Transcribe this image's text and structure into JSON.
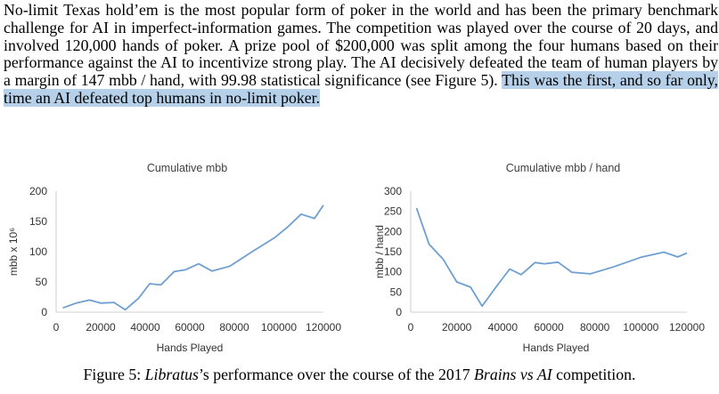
{
  "paragraph": {
    "text_before": "No-limit Texas hold’em is the most popular form of poker in the world and has been the primary benchmark challenge for AI in imperfect-information games. The competition was played over the course of 20 days, and involved 120,000 hands of poker. A prize pool of $200,000 was split among the four humans based on their performance against the AI to incentivize strong play. The AI decisively defeated the team of human players by a margin of 147 mbb / hand, with 99.98 statistical significance (see Figure 5). ",
    "text_highlighted": "This was the first, and so far only, time an AI defeated top humans in no-limit poker."
  },
  "caption": {
    "prefix": "Figure 5: ",
    "name_italic": "Libratus",
    "middle": "’s performance over the course of the 2017 ",
    "event_italic": "Brains vs AI",
    "suffix": " competition."
  },
  "colors": {
    "line": "#6f9fd0",
    "axis": "#d9d9d9",
    "highlight": "#b5d0e8"
  },
  "chart_data": [
    {
      "type": "line",
      "title": "Cumulative mbb",
      "xlabel": "Hands Played",
      "ylabel": "mbb x 10⁶",
      "xlim": [
        0,
        120000
      ],
      "ylim": [
        0,
        200
      ],
      "x_ticks": [
        "0",
        "20000",
        "40000",
        "60000",
        "80000",
        "100000",
        "120000"
      ],
      "y_ticks": [
        "0",
        "50",
        "100",
        "150",
        "200"
      ],
      "grid": false,
      "series": [
        {
          "x": [
            3000,
            9000,
            15000,
            20000,
            26000,
            31000,
            37000,
            42000,
            47000,
            53000,
            58000,
            64000,
            70000,
            78000,
            88000,
            98000,
            104000,
            110000,
            116000,
            120000
          ],
          "values": [
            7,
            15,
            20,
            15,
            16,
            4,
            23,
            47,
            45,
            67,
            70,
            80,
            68,
            76,
            100,
            123,
            141,
            162,
            155,
            177
          ]
        }
      ]
    },
    {
      "type": "line",
      "title": "Cumulative mbb / hand",
      "xlabel": "Hands Played",
      "ylabel": "mbb / hand",
      "xlim": [
        0,
        120000
      ],
      "ylim": [
        0,
        300
      ],
      "x_ticks": [
        "0",
        "20000",
        "40000",
        "60000",
        "80000",
        "100000",
        "120000"
      ],
      "y_ticks": [
        "0",
        "50",
        "100",
        "150",
        "200",
        "250",
        "300"
      ],
      "grid": false,
      "series": [
        {
          "x": [
            2500,
            8000,
            14000,
            20000,
            26000,
            31000,
            37000,
            43000,
            48000,
            54000,
            58000,
            64000,
            70000,
            78000,
            88000,
            100000,
            110000,
            116000,
            120000
          ],
          "values": [
            258,
            168,
            132,
            75,
            62,
            15,
            62,
            107,
            93,
            123,
            120,
            124,
            99,
            95,
            112,
            136,
            149,
            137,
            147
          ]
        }
      ]
    }
  ]
}
